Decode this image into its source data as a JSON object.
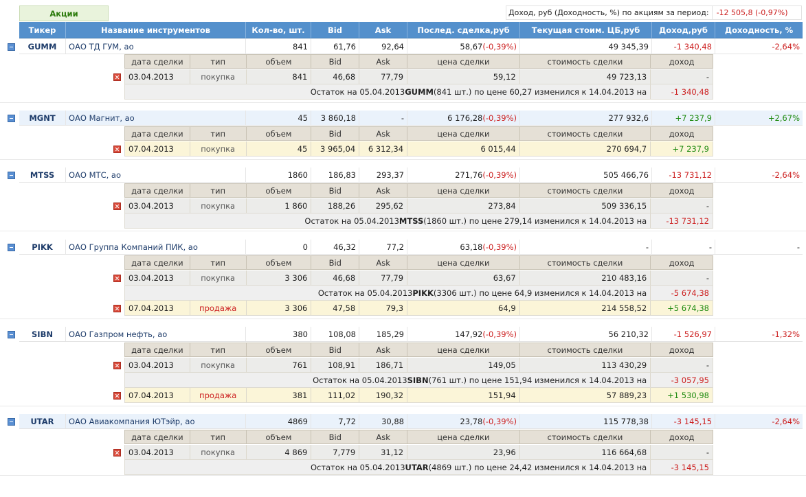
{
  "tab_label": "Акции",
  "summary": {
    "label": "Доход, руб (Доходность, %) по акциям за период:",
    "value": "-12 505,8 (-0,97%)"
  },
  "headers": [
    "Тикер",
    "Название инструментов",
    "Кол-во, шт.",
    "Bid",
    "Ask",
    "Послед. сделка,руб",
    "Текущая стоим. ЦБ,руб",
    "Доход,руб",
    "Доходность, %"
  ],
  "detail_headers": [
    "дата сделки",
    "тип",
    "объем",
    "Bid",
    "Ask",
    "цена сделки",
    "стоимость сделки",
    "доход"
  ],
  "instruments": [
    {
      "ticker": "GUMM",
      "name": "ОАО ТД ГУМ, ао",
      "qty": "841",
      "bid": "61,76",
      "ask": "92,64",
      "last": "58,67",
      "last_pct": "(-0,39%)",
      "value": "49 345,39",
      "income": "-1 340,48",
      "yield": "-2,64%",
      "deals": [
        {
          "date": "03.04.2013",
          "type": "покупка",
          "vol": "841",
          "bid": "46,68",
          "ask": "77,79",
          "price": "59,12",
          "cost": "49 723,13",
          "income": "-"
        }
      ],
      "rests": [
        {
          "pre": "Остаток на 05.04.2013 ",
          "ticker": "GUMM",
          "post": " (841 шт.) по цене 60,27 изменился к 14.04.2013 на",
          "income": "-1 340,48"
        }
      ]
    },
    {
      "ticker": "MGNT",
      "name": "ОАО Магнит, ао",
      "qty": "45",
      "bid": "3 860,18",
      "ask": "-",
      "last": "6 176,28",
      "last_pct": "(-0,39%)",
      "value": "277 932,6",
      "income": "+7 237,9",
      "yield": "+2,67%",
      "deals": [
        {
          "date": "07.04.2013",
          "type": "покупка",
          "vol": "45",
          "bid": "3 965,04",
          "ask": "6 312,34",
          "price": "6 015,44",
          "cost": "270 694,7",
          "income": "+7 237,9"
        }
      ],
      "rests": []
    },
    {
      "ticker": "MTSS",
      "name": "ОАО МТС, ао",
      "qty": "1860",
      "bid": "186,83",
      "ask": "293,37",
      "last": "271,76",
      "last_pct": "(-0,39%)",
      "value": "505 466,76",
      "income": "-13 731,12",
      "yield": "-2,64%",
      "deals": [
        {
          "date": "03.04.2013",
          "type": "покупка",
          "vol": "1 860",
          "bid": "188,26",
          "ask": "295,62",
          "price": "273,84",
          "cost": "509 336,15",
          "income": "-"
        }
      ],
      "rests": [
        {
          "pre": "Остаток на 05.04.2013 ",
          "ticker": "MTSS",
          "post": " (1860 шт.) по цене 279,14 изменился к 14.04.2013 на",
          "income": "-13 731,12"
        }
      ]
    },
    {
      "ticker": "PIKK",
      "name": "ОАО Группа Компаний ПИК, ао",
      "qty": "0",
      "bid": "46,32",
      "ask": "77,2",
      "last": "63,18",
      "last_pct": "(-0,39%)",
      "value": "-",
      "income": "-",
      "yield": "-",
      "deals": [
        {
          "date": "03.04.2013",
          "type": "покупка",
          "vol": "3 306",
          "bid": "46,68",
          "ask": "77,79",
          "price": "63,67",
          "cost": "210 483,16",
          "income": "-"
        },
        {
          "date": "07.04.2013",
          "type": "продажа",
          "vol": "3 306",
          "bid": "47,58",
          "ask": "79,3",
          "price": "64,9",
          "cost": "214 558,52",
          "income": "+5 674,38"
        }
      ],
      "rests": [
        {
          "pre": "Остаток на 05.04.2013 ",
          "ticker": "PIKK",
          "post": " (3306 шт.) по цене 64,9 изменился к 14.04.2013 на",
          "income": "-5 674,38"
        }
      ]
    },
    {
      "ticker": "SIBN",
      "name": "ОАО Газпром нефть, ао",
      "qty": "380",
      "bid": "108,08",
      "ask": "185,29",
      "last": "147,92",
      "last_pct": "(-0,39%)",
      "value": "56 210,32",
      "income": "-1 526,97",
      "yield": "-1,32%",
      "deals": [
        {
          "date": "03.04.2013",
          "type": "покупка",
          "vol": "761",
          "bid": "108,91",
          "ask": "186,71",
          "price": "149,05",
          "cost": "113 430,29",
          "income": "-"
        },
        {
          "date": "07.04.2013",
          "type": "продажа",
          "vol": "381",
          "bid": "111,02",
          "ask": "190,32",
          "price": "151,94",
          "cost": "57 889,23",
          "income": "+1 530,98"
        }
      ],
      "rests": [
        {
          "pre": "Остаток на 05.04.2013 ",
          "ticker": "SIBN",
          "post": " (761 шт.) по цене 151,94 изменился к 14.04.2013 на",
          "income": "-3 057,95"
        }
      ]
    },
    {
      "ticker": "UTAR",
      "name": "ОАО Авиакомпания ЮТэйр, ао",
      "qty": "4869",
      "bid": "7,72",
      "ask": "30,88",
      "last": "23,78",
      "last_pct": "(-0,39%)",
      "value": "115 778,38",
      "income": "-3 145,15",
      "yield": "-2,64%",
      "deals": [
        {
          "date": "03.04.2013",
          "type": "покупка",
          "vol": "4 869",
          "bid": "7,779",
          "ask": "31,12",
          "price": "23,96",
          "cost": "116 664,68",
          "income": "-"
        }
      ],
      "rests": [
        {
          "pre": "Остаток на 05.04.2013 ",
          "ticker": "UTAR",
          "post": " (4869 шт.) по цене 24,42 изменился к 14.04.2013 на",
          "income": "-3 145,15"
        }
      ]
    }
  ],
  "colors": {
    "header_bg": "#5490cc",
    "negative": "#cc1f1f",
    "positive": "#1e8a0f",
    "tab_green": "#2b7a0b"
  },
  "icons": {
    "collapse": "collapse-icon",
    "delete": "delete-icon"
  }
}
